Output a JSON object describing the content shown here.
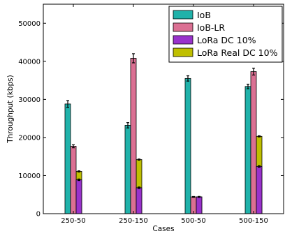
{
  "chart_data": {
    "type": "bar",
    "title": "",
    "xlabel": "Cases",
    "ylabel": "Throughput (kbps)",
    "ylim": [
      0,
      55000
    ],
    "yticks": [
      0,
      10000,
      20000,
      30000,
      40000,
      50000
    ],
    "categories": [
      "250-50",
      "250-150",
      "500-50",
      "500-150"
    ],
    "legend_position": "top-right",
    "grid": false,
    "series": [
      {
        "name": "IoB",
        "color": "#20b2aa",
        "values": [
          28800,
          23200,
          35500,
          33400
        ],
        "errors": [
          900,
          700,
          700,
          600
        ]
      },
      {
        "name": "IoB-LR",
        "color": "#db7093",
        "values": [
          17700,
          40800,
          4400,
          37300
        ],
        "errors": [
          400,
          1200,
          100,
          900
        ]
      },
      {
        "name": "LoRa DC 10%",
        "color": "#9932cc",
        "values": [
          8900,
          6800,
          4400,
          12400
        ],
        "errors": [
          200,
          200,
          100,
          200
        ]
      },
      {
        "name": "LoRa Real DC 10%",
        "color": "#bfbf00",
        "values": [
          11100,
          14200,
          4400,
          20300
        ],
        "errors": [
          150,
          150,
          100,
          150
        ],
        "stacked_on": "LoRa DC 10%"
      }
    ]
  }
}
